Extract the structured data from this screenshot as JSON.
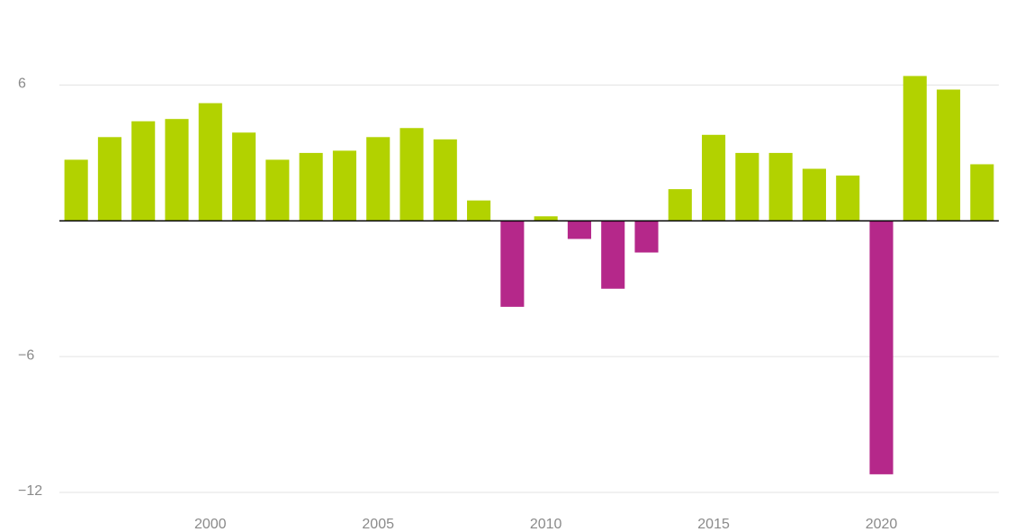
{
  "chart_data": {
    "type": "bar",
    "x": [
      1996,
      1997,
      1998,
      1999,
      2000,
      2001,
      2002,
      2003,
      2004,
      2005,
      2006,
      2007,
      2008,
      2009,
      2010,
      2011,
      2012,
      2013,
      2014,
      2015,
      2016,
      2017,
      2018,
      2019,
      2020,
      2021,
      2022,
      2023
    ],
    "values": [
      2.7,
      3.7,
      4.4,
      4.5,
      5.2,
      3.9,
      2.7,
      3.0,
      3.1,
      3.7,
      4.1,
      3.6,
      0.9,
      -3.8,
      0.2,
      -0.8,
      -3.0,
      -1.4,
      1.4,
      3.8,
      3.0,
      3.0,
      2.3,
      2.0,
      -11.2,
      6.4,
      5.8,
      2.5
    ],
    "positive_color": "#b2d200",
    "negative_color": "#b5288a",
    "xlim": [
      1995.5,
      2023.5
    ],
    "xticks": [
      2000,
      2005,
      2010,
      2015,
      2020
    ],
    "ylim": [
      -12,
      8
    ],
    "yticks": [
      {
        "value": -12,
        "label": "−12"
      },
      {
        "value": -6,
        "label": "−6"
      },
      6
    ],
    "grid": true
  }
}
